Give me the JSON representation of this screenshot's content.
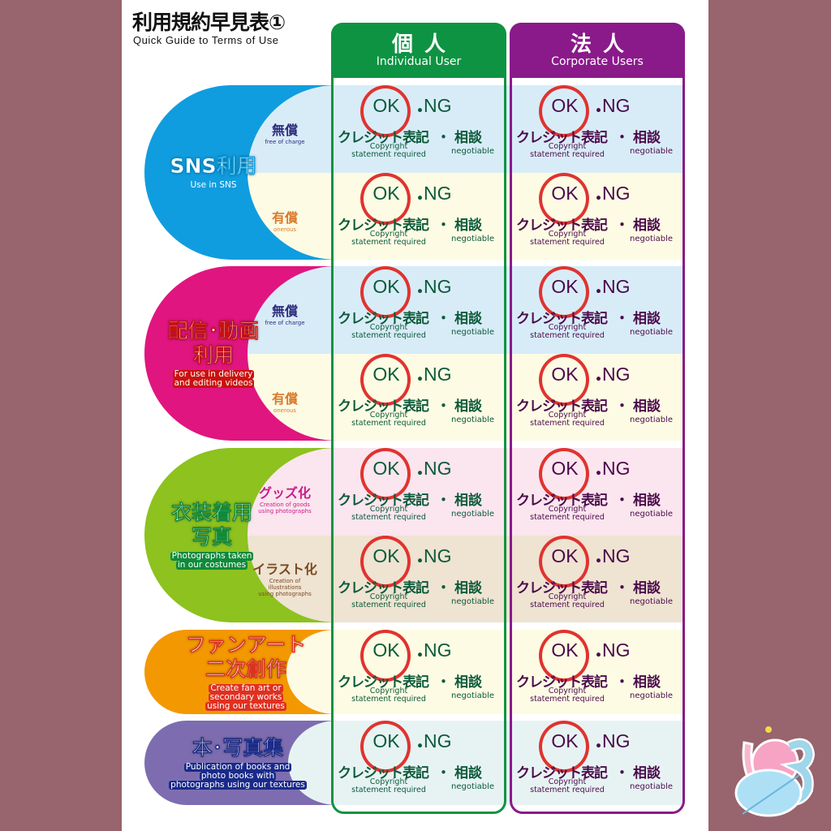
{
  "title": "利用規約早見表①",
  "subtitle": "Quick Guide to Terms of Use",
  "columns": [
    {
      "jp": "個人",
      "en": "Individual User",
      "color": "#0e9342",
      "text": "#0b5a3a"
    },
    {
      "jp": "法人",
      "en": "Corporate Users",
      "color": "#8a1a8a",
      "text": "#4a0a4a"
    }
  ],
  "cell": {
    "ok": "OK",
    "ng": "NG",
    "dot": "・",
    "credit": "クレジット表記",
    "credit_en_1": "Copyright",
    "credit_en_2": "statement required",
    "sep": "・",
    "sodan": "相談",
    "sodan_en": "negotiable",
    "selected": "OK"
  },
  "groups": [
    {
      "jp": [
        "SNS利用"
      ],
      "en": [
        "Use in SNS"
      ],
      "color": "#0f9ddf",
      "enbg": "#0f9ddf",
      "rows": [
        {
          "jp": "無償",
          "en": [
            "free of charge"
          ],
          "bg": "#d8ecf8",
          "subcolor": "#2c2a7a"
        },
        {
          "jp": "有償",
          "en": [
            "onerous"
          ],
          "bg": "#fdfbe4",
          "subcolor": "#d87a2a"
        }
      ]
    },
    {
      "jp": [
        "配信･動画",
        "利用"
      ],
      "en": [
        "For use in delivery",
        "and editing videos"
      ],
      "color": "#e0157f",
      "enbg": "#c9120f",
      "rows": [
        {
          "jp": "無償",
          "en": [
            "free of charge"
          ],
          "bg": "#d8ecf8",
          "subcolor": "#2c2a7a"
        },
        {
          "jp": "有償",
          "en": [
            "onerous"
          ],
          "bg": "#fdfbe4",
          "subcolor": "#d87a2a"
        }
      ]
    },
    {
      "jp": [
        "衣装着用",
        "写真"
      ],
      "en": [
        "Photographs taken",
        "in our costumes"
      ],
      "color": "#8dc21f",
      "enbg": "#0e8a3a",
      "rows": [
        {
          "jp": "グッズ化",
          "en": [
            "Creation of goods",
            "using photographs"
          ],
          "bg": "#fbe5ee",
          "subcolor": "#c81c8c"
        },
        {
          "jp": "イラスト化",
          "en": [
            "Creation of",
            "illustrations",
            "using photographs"
          ],
          "bg": "#efe3d2",
          "subcolor": "#7a4a20"
        }
      ]
    },
    {
      "jp": [
        "ファンアート",
        "二次創作"
      ],
      "en": [
        "Create fan art or",
        "secondary works",
        "using our textures"
      ],
      "color": "#f39800",
      "enbg": "#e03020",
      "rows": [
        {
          "jp": "",
          "en": [],
          "bg": "#fdfbe4",
          "subcolor": "#000"
        }
      ]
    },
    {
      "jp": [
        "本･写真集"
      ],
      "en": [
        "Publication of books and",
        "photo books with",
        "photographs using our textures"
      ],
      "color": "#7d6db0",
      "enbg": "#1a2a8a",
      "rows": [
        {
          "jp": "",
          "en": [],
          "bg": "#e7f3f3",
          "subcolor": "#000"
        }
      ]
    }
  ]
}
